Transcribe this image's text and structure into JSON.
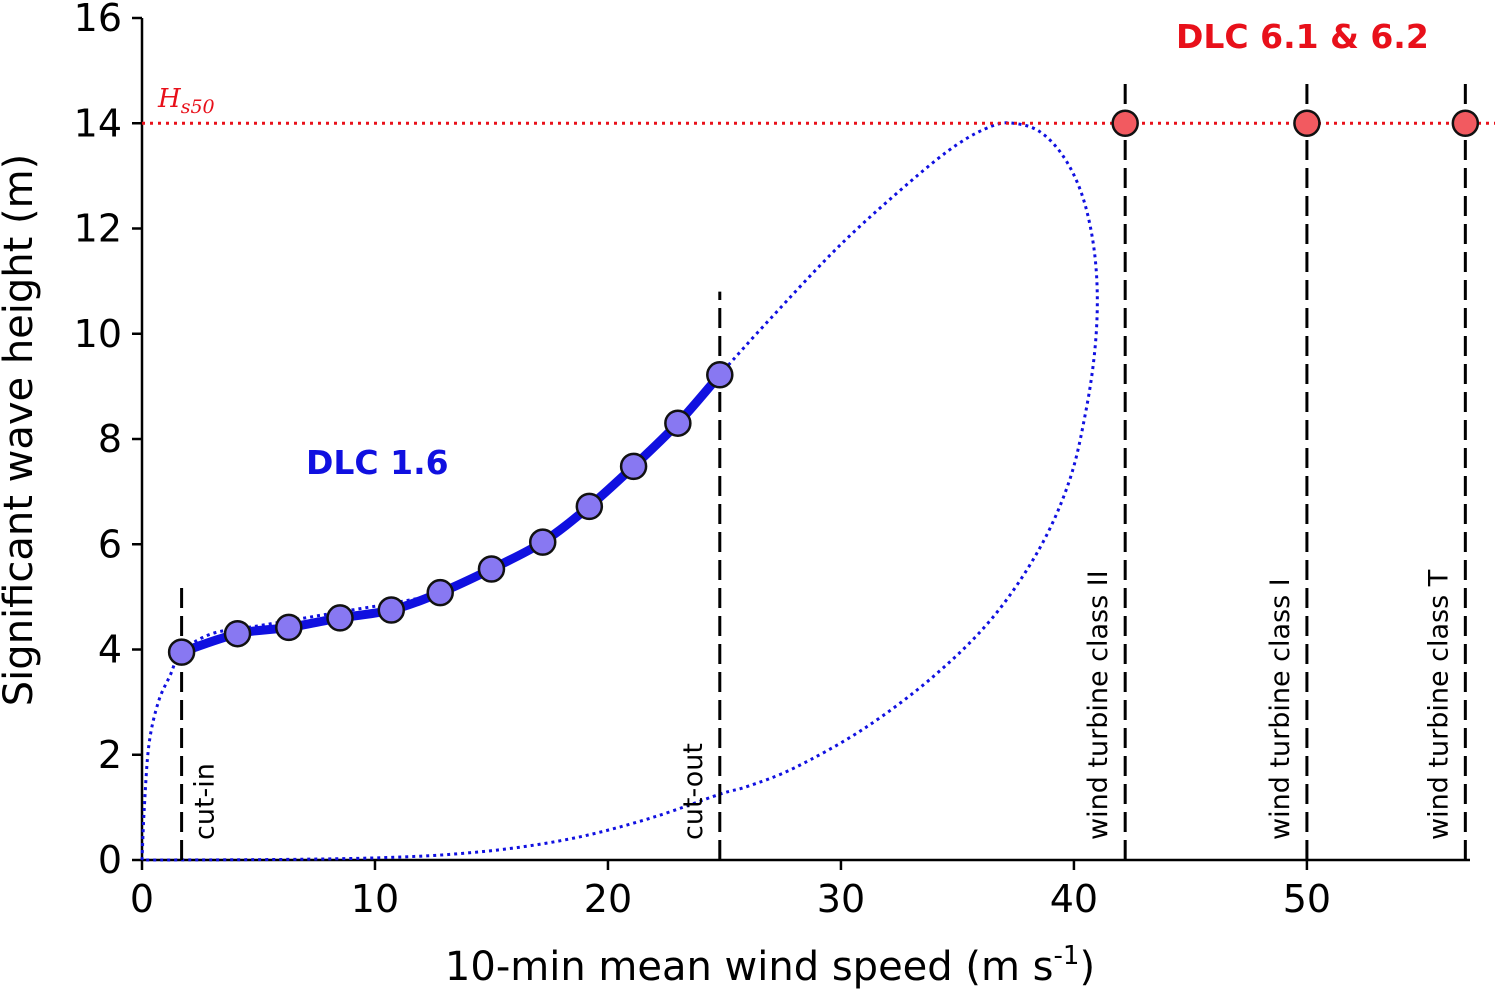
{
  "chart_data": {
    "type": "line",
    "xlabel": "10-min mean wind speed (m s",
    "xlabel_sup": "-1",
    "xlabel_end": ")",
    "ylabel": "Significant wave height (m)",
    "xlim": [
      0,
      57
    ],
    "ylim": [
      0,
      16
    ],
    "xticks": [
      0,
      10,
      20,
      30,
      40,
      50
    ],
    "yticks": [
      0,
      2,
      4,
      6,
      8,
      10,
      12,
      14,
      16
    ],
    "hs50": {
      "value": 14,
      "label_main": "H",
      "label_sub": "s50",
      "color": "#e8101a"
    },
    "dlc16": {
      "label": "DLC 1.6",
      "color": "#1010e0",
      "marker_color": "#8878f2",
      "x": [
        1.7,
        4.1,
        6.3,
        8.5,
        10.7,
        12.8,
        15.0,
        17.2,
        19.2,
        21.1,
        23.0,
        24.8
      ],
      "y": [
        3.95,
        4.3,
        4.42,
        4.6,
        4.75,
        5.08,
        5.53,
        6.04,
        6.72,
        7.48,
        8.3,
        9.22
      ]
    },
    "contour": {
      "color": "#1010e0",
      "x": [
        0,
        0.1,
        0.3,
        0.7,
        1.2,
        1.7,
        3,
        5,
        7,
        9,
        11,
        13,
        15,
        17,
        19,
        21,
        23,
        24.8,
        27,
        30,
        33,
        35,
        36.5,
        37.4,
        38.5,
        39.5,
        40.3,
        40.8,
        41.0,
        40.9,
        40.5,
        39.8,
        38.5,
        36.5,
        34,
        31,
        28,
        26,
        24.8,
        22,
        19,
        16,
        13,
        10,
        7,
        4,
        2,
        0.5,
        0
      ],
      "y": [
        0,
        1.0,
        2.2,
        3.0,
        3.5,
        3.95,
        4.3,
        4.45,
        4.6,
        4.75,
        4.9,
        5.1,
        5.5,
        6.0,
        6.7,
        7.5,
        8.3,
        9.22,
        10.3,
        11.7,
        12.9,
        13.6,
        13.95,
        14.0,
        13.85,
        13.4,
        12.7,
        11.8,
        10.8,
        9.7,
        8.5,
        7.2,
        5.9,
        4.6,
        3.5,
        2.5,
        1.75,
        1.4,
        1.25,
        0.82,
        0.46,
        0.23,
        0.1,
        0.04,
        0.015,
        0.005,
        0.002,
        0,
        0
      ]
    },
    "dlc6": {
      "label": "DLC 6.1 & 6.2",
      "color": "#e8101a",
      "marker_color": "#f25a60",
      "x": [
        42.2,
        50.0,
        56.8
      ],
      "y": [
        14,
        14,
        14
      ]
    },
    "vlines": [
      {
        "x": 1.7,
        "top": 5.3,
        "label": "cut-in",
        "label_side": "right"
      },
      {
        "x": 24.8,
        "top": 10.8,
        "label": "cut-out",
        "label_side": "left"
      },
      {
        "x": 42.2,
        "top": 14.8,
        "label": "wind turbine class II",
        "label_side": "left"
      },
      {
        "x": 50.0,
        "top": 14.8,
        "label": "wind turbine class I",
        "label_side": "left"
      },
      {
        "x": 56.8,
        "top": 14.8,
        "label": "wind turbine class T",
        "label_side": "left"
      }
    ]
  }
}
